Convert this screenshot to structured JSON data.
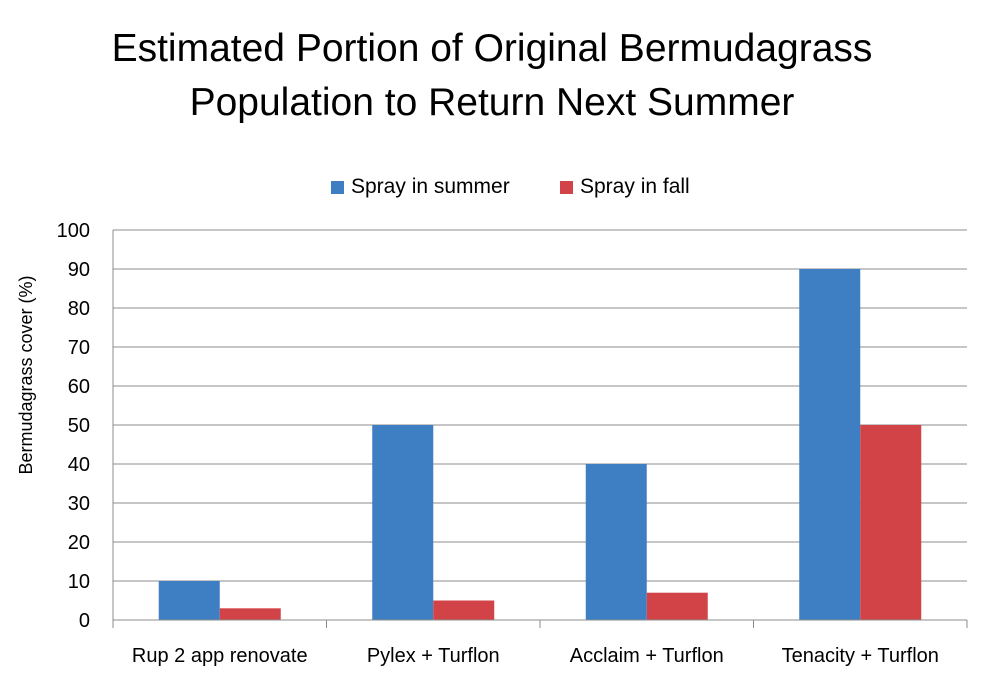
{
  "chart_data": {
    "type": "bar",
    "title_lines": [
      "Estimated Portion of Original Bermudagrass",
      "Population to Return Next Summer"
    ],
    "xlabel": "",
    "ylabel": "Bermudagrass cover (%)",
    "categories": [
      "Rup 2 app renovate",
      "Pylex + Turflon",
      "Acclaim + Turflon",
      "Tenacity + Turflon"
    ],
    "series": [
      {
        "name": "Spray in summer",
        "color": "#3d7fc2",
        "values": [
          10,
          50,
          40,
          90
        ]
      },
      {
        "name": "Spray in fall",
        "color": "#d24348",
        "values": [
          3,
          5,
          7,
          50
        ]
      }
    ],
    "ylim": [
      0,
      100
    ],
    "yticks": [
      "0",
      "10",
      "20",
      "30",
      "40",
      "50",
      "60",
      "70",
      "80",
      "90",
      "100"
    ],
    "grid": true,
    "legend_position": "top"
  }
}
